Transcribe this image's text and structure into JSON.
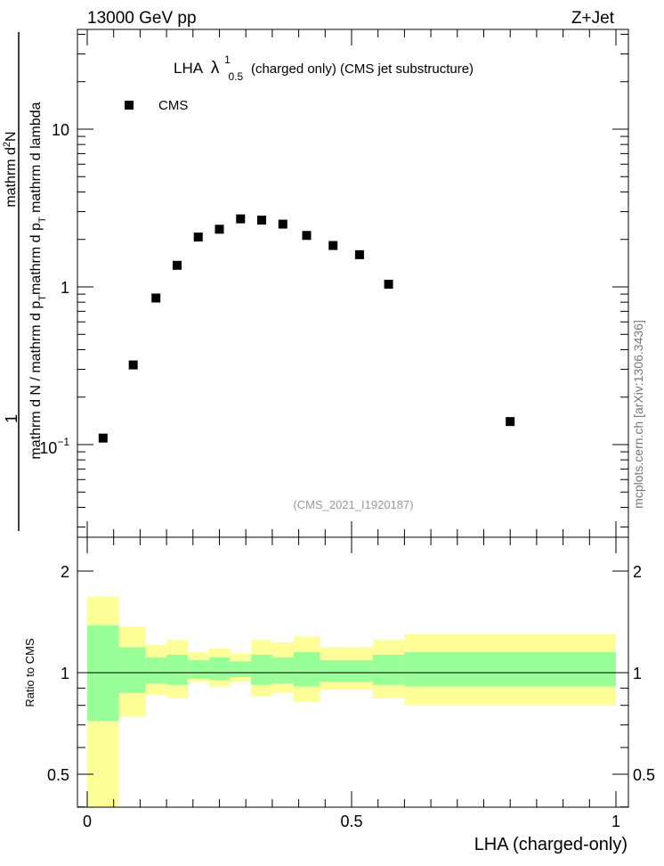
{
  "header": {
    "left": "13000 GeV pp",
    "right": "Z+Jet"
  },
  "main_plot": {
    "title_prefix": "LHA",
    "title_lambda": "λ",
    "title_sup": "1",
    "title_sub": "0.5",
    "title_suffix": "(charged only) (CMS jet substructure)",
    "legend_label": "CMS",
    "analysis_id": "(CMS_2021_I1920187)",
    "ylabel_numerator": "mathrm d²N",
    "ylabel_denominator": "mathrm d N / mathrm d p_T mathrm d p_T mathrm d lambda",
    "ylabel_one": "1",
    "ytick_labels": [
      "10",
      "1",
      "10^-1"
    ]
  },
  "watermark": "mcplots.cern.ch [arXiv:1306.3436]",
  "ratio_plot": {
    "ylabel": "Ratio to CMS",
    "ytick_labels": [
      "2",
      "1",
      "0.5"
    ],
    "xtick_labels": [
      "0",
      "0.5",
      "1"
    ],
    "xlabel": "LHA (charged-only)"
  },
  "colors": {
    "marker": "#000000",
    "band_outer": "#ffff99",
    "band_inner": "#99ff99",
    "analysis_id": "#999999",
    "watermark": "#777777"
  },
  "chart_data": [
    {
      "type": "scatter",
      "series": [
        {
          "name": "CMS",
          "x": [
            0.03,
            0.087,
            0.13,
            0.17,
            0.21,
            0.25,
            0.29,
            0.33,
            0.37,
            0.415,
            0.465,
            0.515,
            0.57,
            0.8
          ],
          "y": [
            0.11,
            0.32,
            0.85,
            1.37,
            2.07,
            2.32,
            2.7,
            2.65,
            2.5,
            2.12,
            1.83,
            1.6,
            1.04,
            0.14
          ]
        }
      ],
      "xlim": [
        -0.02,
        1.02
      ],
      "ylim": [
        0.03,
        40
      ],
      "yscale": "log",
      "legend_position": "top-left"
    },
    {
      "type": "area",
      "ylabel": "Ratio to CMS",
      "xlabel": "LHA (charged-only)",
      "xlim": [
        -0.02,
        1.02
      ],
      "ylim": [
        0.4,
        2.3
      ],
      "yscale": "log",
      "reference_line": 1,
      "bins": [
        {
          "x0": 0.0,
          "x1": 0.06,
          "outer": [
            0.32,
            1.68
          ],
          "inner": [
            0.72,
            1.38
          ]
        },
        {
          "x0": 0.06,
          "x1": 0.11,
          "outer": [
            0.74,
            1.37
          ],
          "inner": [
            0.87,
            1.19
          ]
        },
        {
          "x0": 0.11,
          "x1": 0.15,
          "outer": [
            0.86,
            1.21
          ],
          "inner": [
            0.93,
            1.11
          ]
        },
        {
          "x0": 0.15,
          "x1": 0.19,
          "outer": [
            0.84,
            1.25
          ],
          "inner": [
            0.92,
            1.13
          ]
        },
        {
          "x0": 0.19,
          "x1": 0.23,
          "outer": [
            0.94,
            1.15
          ],
          "inner": [
            0.96,
            1.09
          ]
        },
        {
          "x0": 0.23,
          "x1": 0.27,
          "outer": [
            0.91,
            1.18
          ],
          "inner": [
            0.95,
            1.11
          ]
        },
        {
          "x0": 0.27,
          "x1": 0.31,
          "outer": [
            0.94,
            1.14
          ],
          "inner": [
            0.97,
            1.08
          ]
        },
        {
          "x0": 0.31,
          "x1": 0.35,
          "outer": [
            0.85,
            1.25
          ],
          "inner": [
            0.92,
            1.13
          ]
        },
        {
          "x0": 0.35,
          "x1": 0.39,
          "outer": [
            0.87,
            1.23
          ],
          "inner": [
            0.93,
            1.11
          ]
        },
        {
          "x0": 0.39,
          "x1": 0.44,
          "outer": [
            0.82,
            1.28
          ],
          "inner": [
            0.91,
            1.15
          ]
        },
        {
          "x0": 0.44,
          "x1": 0.54,
          "outer": [
            0.89,
            1.19
          ],
          "inner": [
            0.94,
            1.09
          ]
        },
        {
          "x0": 0.54,
          "x1": 0.6,
          "outer": [
            0.84,
            1.25
          ],
          "inner": [
            0.92,
            1.13
          ]
        },
        {
          "x0": 0.6,
          "x1": 1.0,
          "outer": [
            0.8,
            1.3
          ],
          "inner": [
            0.91,
            1.15
          ]
        }
      ]
    }
  ]
}
